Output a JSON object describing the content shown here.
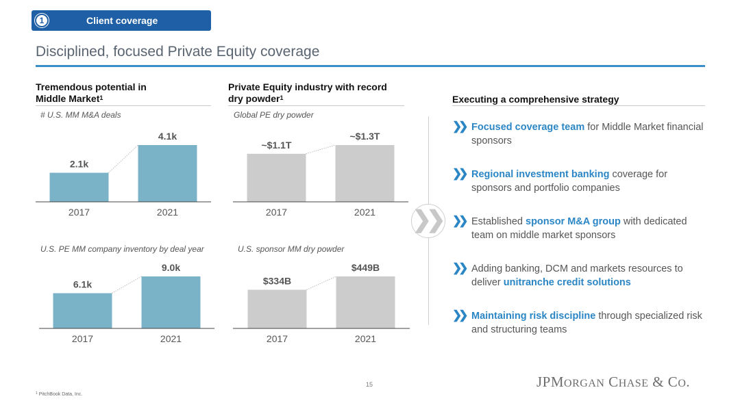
{
  "header": {
    "section_number": "1",
    "section_label": "Client coverage",
    "title": "Disciplined, focused Private Equity coverage"
  },
  "left_column": {
    "heading_line1": "Tremendous potential in",
    "heading_line2": "Middle Market",
    "heading_sup": "1"
  },
  "mid_column": {
    "heading_line1": "Private Equity industry with record",
    "heading_line2": "dry powder",
    "heading_sup": "1"
  },
  "right_column": {
    "heading": "Executing a comprehensive strategy",
    "items": [
      {
        "arrow": "❯❯",
        "highlight": "Focused coverage team",
        "rest": " for Middle Market financial sponsors"
      },
      {
        "arrow": "❯❯",
        "highlight": "Regional investment banking",
        "rest": " coverage for sponsors and portfolio companies"
      },
      {
        "arrow": "❯❯",
        "pre": "Established ",
        "highlight": "sponsor M&A group",
        "rest": " with dedicated team on middle market sponsors"
      },
      {
        "arrow": "❯❯",
        "pre": "Adding banking, DCM and markets resources to deliver ",
        "highlight": "unitranche credit solutions",
        "rest": ""
      },
      {
        "arrow": "❯❯",
        "highlight": "Maintaining risk discipline",
        "rest": " through specialized risk and structuring teams"
      }
    ]
  },
  "center_icon": "double-chevron-right-icon",
  "chart_data": [
    {
      "type": "bar",
      "title": "# U.S. MM M&A deals",
      "categories": [
        "2017",
        "2021"
      ],
      "values": [
        2.1,
        4.1
      ],
      "labels": [
        "2.1k",
        "4.1k"
      ],
      "ylim": [
        0,
        4.1
      ],
      "color": "#7ab3c8"
    },
    {
      "type": "bar",
      "title": "Global PE dry powder",
      "categories": [
        "2017",
        "2021"
      ],
      "values": [
        1.1,
        1.3
      ],
      "labels": [
        "~$1.1T",
        "~$1.3T"
      ],
      "ylim": [
        0,
        1.3
      ],
      "color": "#cccccc"
    },
    {
      "type": "bar",
      "title": "U.S. PE MM company inventory by deal year",
      "categories": [
        "2017",
        "2021"
      ],
      "values": [
        6.1,
        9.0
      ],
      "labels": [
        "6.1k",
        "9.0k"
      ],
      "ylim": [
        0,
        9.0
      ],
      "color": "#7ab3c8"
    },
    {
      "type": "bar",
      "title": "U.S. sponsor MM dry powder",
      "categories": [
        "2017",
        "2021"
      ],
      "values": [
        334,
        449
      ],
      "labels": [
        "$334B",
        "$449B"
      ],
      "ylim": [
        0,
        449
      ],
      "color": "#cccccc"
    }
  ],
  "footer": {
    "page_number": "15",
    "footnote_sup": "1",
    "footnote": "PitchBook Data, Inc.",
    "logo": "JPMorgan Chase & Co."
  }
}
